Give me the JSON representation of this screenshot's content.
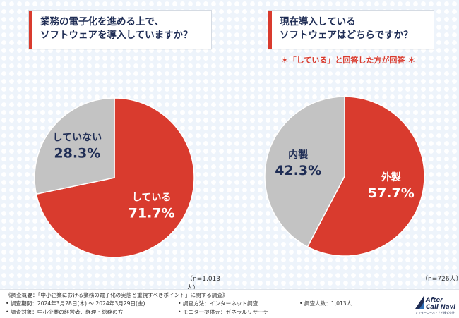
{
  "colors": {
    "red": "#d93b2e",
    "gray": "#c3c3c3",
    "navy": "#1f2d55"
  },
  "chart_data": [
    {
      "type": "pie",
      "title": "業務の電子化を進める上で、ソフトウェアを導入していますか？",
      "title_lines": [
        "業務の電子化を進める上で、",
        "ソフトウェアを導入していますか？"
      ],
      "slices": [
        {
          "label": "している",
          "value": 71.7,
          "display": "71.7%",
          "color": "#d93b2e"
        },
        {
          "label": "していない",
          "value": 28.3,
          "display": "28.3%",
          "color": "#c3c3c3"
        }
      ],
      "sample": "（n=1,013人）"
    },
    {
      "type": "pie",
      "title": "現在導入しているソフトウェアはどちらですか？",
      "title_lines": [
        "現在導入している",
        "ソフトウェアはどちらですか？"
      ],
      "note": "＊「している」と回答した方が回答 ＊",
      "slices": [
        {
          "label": "外製",
          "value": 57.7,
          "display": "57.7%",
          "color": "#d93b2e"
        },
        {
          "label": "内製",
          "value": 42.3,
          "display": "42.3%",
          "color": "#c3c3c3"
        }
      ],
      "sample": "（n=726人）"
    }
  ],
  "footer": {
    "outline": "《調査概要：「中小企業における業務の電子化の実態と重視すべきポイント」に関する調査》",
    "period": "• 調査期間：2024年3月28日(木) 〜 2024年3月29日(金)",
    "method": "• 調査方法：インターネット調査",
    "count": "• 調査人数：1,013人",
    "target": "• 調査対象：中小企業の経営者、経理・総務の方",
    "provider": "• モニター提供元：ゼネラルリサーチ"
  },
  "logo": {
    "line1": "After",
    "line2": "Call Navi",
    "company": "アフターコール・ナビ株式会社"
  }
}
